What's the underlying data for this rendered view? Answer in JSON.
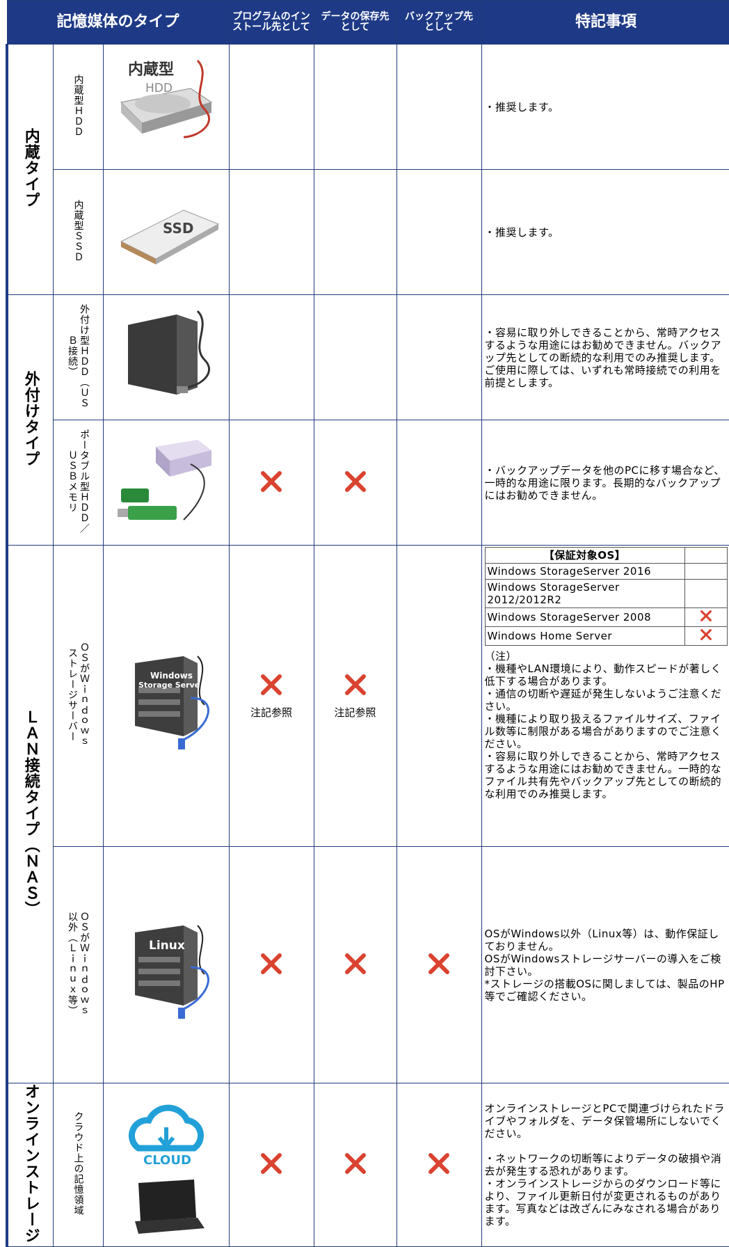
{
  "header": {
    "media_type": "記憶媒体のタイプ",
    "program": "プログラムのインストール先として",
    "data": "データの保存先として",
    "backup": "バックアップ先として",
    "notes": "特記事項"
  },
  "groups": [
    {
      "label": "内蔵タイプ",
      "rows": [
        {
          "type": "内蔵型ＨＤＤ",
          "image_labels": [
            "内蔵型",
            "HDD"
          ],
          "x": [
            false,
            false,
            false
          ],
          "notes": [
            [
              "・推奨します。"
            ]
          ]
        },
        {
          "type": "内蔵型ＳＳＤ",
          "image_labels": [
            "SSD"
          ],
          "x": [
            false,
            false,
            false
          ],
          "notes": [
            [
              "・推奨します。"
            ]
          ]
        }
      ]
    },
    {
      "label": "外付けタイプ",
      "rows": [
        {
          "type": "外付け型ＨＤＤ（ＵＳＢ接続）",
          "x": [
            false,
            false,
            false
          ],
          "notes": [
            [
              "・容易に取り外しできることから、常時アクセスするような用途にはお勧めできません。バックアップ先としての断続的な利用でのみ推奨します。",
              "ご使用に際しては、いずれも常時接続での利用を前提とします。"
            ]
          ]
        },
        {
          "type": "ポータブル型ＨＤＤ／ＵＳＢメモリ",
          "x": [
            true,
            true,
            false
          ],
          "notes": [
            [
              "・バックアップデータを他のPCに移す場合など、一時的な用途に限ります。長期的なバックアップにはお勧めできません。"
            ]
          ]
        }
      ]
    },
    {
      "label": "ＬＡＮ接続タイプ（ＮＡＳ）",
      "rows": [
        {
          "type": "ＯＳがＷｉｎｄｏｗｓストレージサーバー",
          "image_labels": [
            "Windows",
            "Storage Server"
          ],
          "x": [
            true,
            true,
            false
          ],
          "x_notes": [
            "注記参照",
            "注記参照"
          ],
          "os_table": {
            "title": "【保証対象OS】",
            "rows": [
              {
                "name": "Windows StorageServer 2016",
                "x": false
              },
              {
                "name": "Windows StorageServer 2012/2012R2",
                "x": false
              },
              {
                "name": "Windows StorageServer 2008",
                "x": true
              },
              {
                "name": "Windows Home Server",
                "x": true
              }
            ]
          },
          "notes": [
            [
              "（注）",
              "・機種やLAN環境により、動作スピードが著しく低下する場合があります。",
              "・通信の切断や遅延が発生しないようご注意ください。",
              "・機種により取り扱えるファイルサイズ、ファイル数等に制限がある場合がありますのでご注意ください。",
              "・容易に取り外しできることから、常時アクセスするような用途にはお勧めできません。一時的なファイル共有先やバックアップ先としての断続的な利用でのみ推奨します。"
            ]
          ]
        },
        {
          "type": "ＯＳがＷｉｎｄｏｗｓ以外（Ｌｉｎｕｘ等）",
          "image_labels": [
            "Linux"
          ],
          "x": [
            true,
            true,
            true
          ],
          "notes": [
            [
              "OSがWindows以外（Linux等）は、動作保証しておりません。",
              "OSがWindowsストレージサーバーの導入をご検討下さい。",
              "*ストレージの搭載OSに関しましては、製品のHP等でご確認ください。"
            ]
          ]
        }
      ]
    },
    {
      "label": "オンラインストレージ",
      "rows": [
        {
          "type": "クラウド上の記憶領域",
          "image_labels": [
            "CLOUD"
          ],
          "x": [
            true,
            true,
            true
          ],
          "notes": [
            [
              "オンラインストレージとPCで関連づけられたドライブやフォルダを、データ保管場所にしないでください。"
            ],
            [
              "・ネットワークの切断等によりデータの破損や消去が発生する恐れがあります。",
              "・オンラインストレージからのダウンロード等により、ファイル更新日付が変更されるものがあります。写真などは改ざんにみなされる場合があります。"
            ]
          ]
        }
      ]
    }
  ]
}
